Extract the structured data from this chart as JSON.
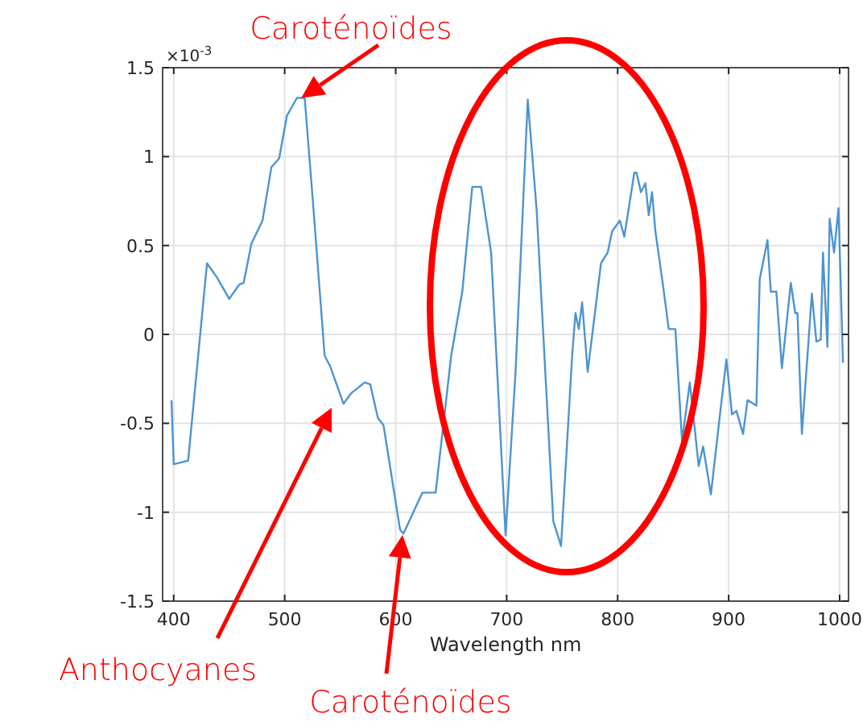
{
  "chart_data": {
    "type": "line",
    "xlabel": "Wavelength nm",
    "xlim": [
      390,
      1008
    ],
    "ylim": [
      -1.5,
      1.5
    ],
    "xticks": [
      400,
      500,
      600,
      700,
      800,
      900,
      1000
    ],
    "yticks": [
      -1.5,
      -1,
      -0.5,
      0,
      0.5,
      1,
      1.5
    ],
    "grid": true,
    "annotations": [
      "×10$^{-3}$",
      {
        "text": "Caroténoïdes",
        "x": 515,
        "y": 1.33
      },
      "Anthocyanes",
      "Caroténoïdes"
    ],
    "series": [
      {
        "color": "#4d94d0",
        "x": [
          398,
          400,
          413,
          430,
          439,
          450,
          459,
          463,
          470,
          480,
          488,
          495,
          502,
          511,
          518,
          526,
          536,
          541,
          553,
          560,
          572,
          577,
          584,
          589,
          604,
          607,
          624,
          636,
          650,
          660,
          669,
          677,
          686,
          699,
          708,
          719,
          727,
          742,
          749,
          759,
          762,
          765,
          768,
          773,
          785,
          791,
          795,
          802,
          806,
          815,
          817,
          821,
          825,
          828,
          831,
          834,
          841,
          846,
          852,
          858,
          865,
          873,
          877,
          884,
          892,
          898,
          903,
          907,
          913,
          917,
          925,
          928,
          935,
          938,
          943,
          948,
          956,
          960,
          962,
          966,
          975,
          979,
          983,
          985,
          989,
          991,
          995,
          999,
          1003
        ],
        "values": [
          -0.37,
          -0.73,
          -0.71,
          0.4,
          0.32,
          0.2,
          0.28,
          0.29,
          0.51,
          0.64,
          0.94,
          0.99,
          1.23,
          1.33,
          1.33,
          0.7,
          -0.12,
          -0.18,
          -0.39,
          -0.33,
          -0.27,
          -0.28,
          -0.47,
          -0.51,
          -1.1,
          -1.12,
          -0.89,
          -0.89,
          -0.12,
          0.24,
          0.83,
          0.83,
          0.46,
          -1.13,
          -0.21,
          1.32,
          0.7,
          -1.05,
          -1.19,
          -0.12,
          0.12,
          0.03,
          0.18,
          -0.21,
          0.4,
          0.46,
          0.58,
          0.64,
          0.55,
          0.91,
          0.91,
          0.8,
          0.85,
          0.67,
          0.8,
          0.58,
          0.27,
          0.03,
          0.03,
          -0.6,
          -0.27,
          -0.74,
          -0.63,
          -0.9,
          -0.46,
          -0.14,
          -0.45,
          -0.43,
          -0.56,
          -0.37,
          -0.4,
          0.31,
          0.53,
          0.24,
          0.24,
          -0.19,
          0.29,
          0.12,
          0.12,
          -0.56,
          0.23,
          -0.04,
          -0.03,
          0.46,
          -0.07,
          0.65,
          0.46,
          0.71,
          -0.16
        ]
      }
    ]
  }
}
